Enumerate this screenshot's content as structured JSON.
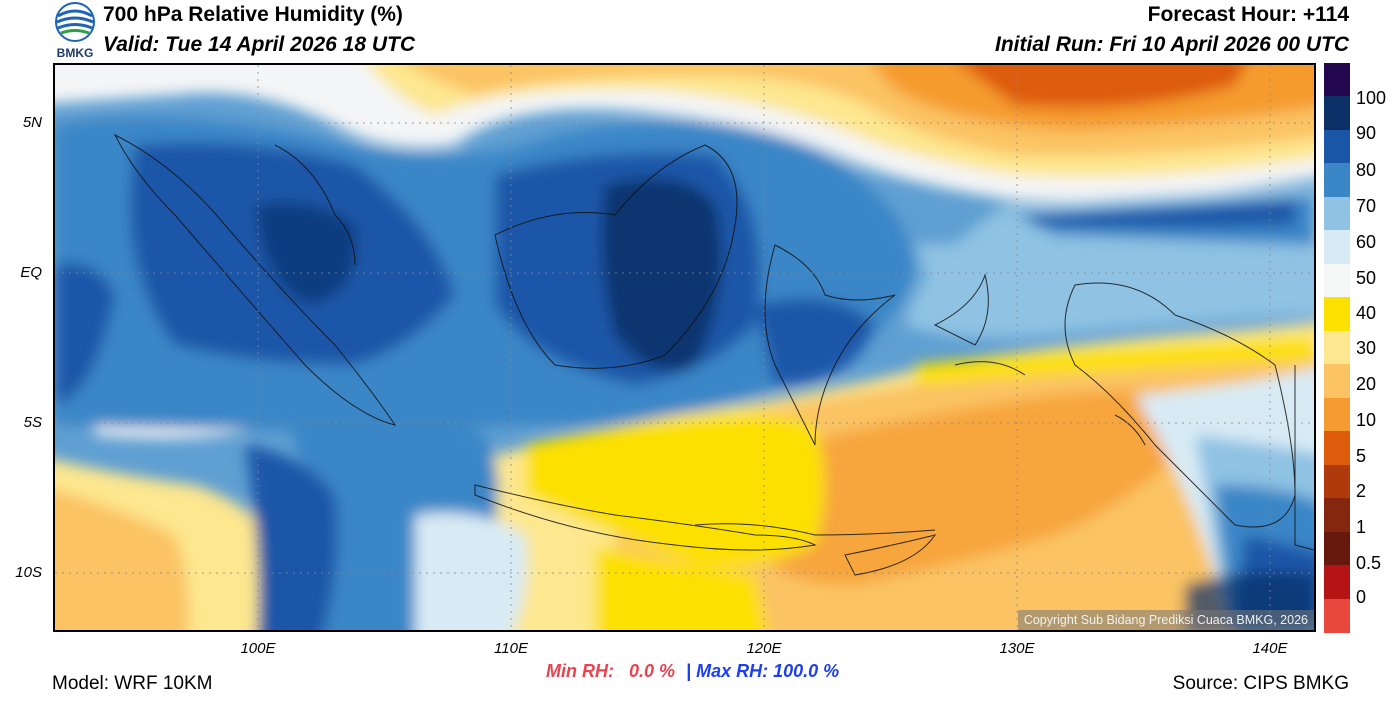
{
  "header": {
    "title": "700 hPa Relative Humidity (%)",
    "valid": "Valid: Tue 14 April 2026 18 UTC",
    "forecast_hour": "Forecast Hour: +114",
    "initial_run": "Initial Run: Fri 10 April 2026 00 UTC"
  },
  "logo": {
    "text": "BMKG",
    "color": "#1f63b5"
  },
  "map": {
    "lat_labels": [
      "5N",
      "EQ",
      "5S",
      "10S"
    ],
    "lon_labels": [
      "100E",
      "110E",
      "120E",
      "130E",
      "140E"
    ],
    "copyright": "Copyright Sub Bidang Prediksi Cuaca BMKG, 2026"
  },
  "colorbar": {
    "labels": [
      "100",
      "90",
      "80",
      "70",
      "60",
      "50",
      "40",
      "30",
      "20",
      "10",
      "5",
      "2",
      "1",
      "0.5",
      "0"
    ],
    "colors": [
      "#24084f",
      "#0b2f66",
      "#1a56a8",
      "#3b86c7",
      "#8fc2e3",
      "#d8ebf5",
      "#f5f6f6",
      "#fce000",
      "#fde78f",
      "#fbc364",
      "#f59b2f",
      "#dd5b0b",
      "#b13a0c",
      "#85260f",
      "#66180c",
      "#b41414",
      "#e8473b"
    ]
  },
  "stats": {
    "min_label": "Min RH:",
    "min_value": "0.0 %",
    "separator": "|",
    "max_label": "Max RH:",
    "max_value": "100.0 %",
    "min_color": "#e8434f",
    "max_color": "#1c3ff0"
  },
  "footer": {
    "model": "Model: WRF 10KM",
    "source": "Source: CIPS BMKG"
  }
}
